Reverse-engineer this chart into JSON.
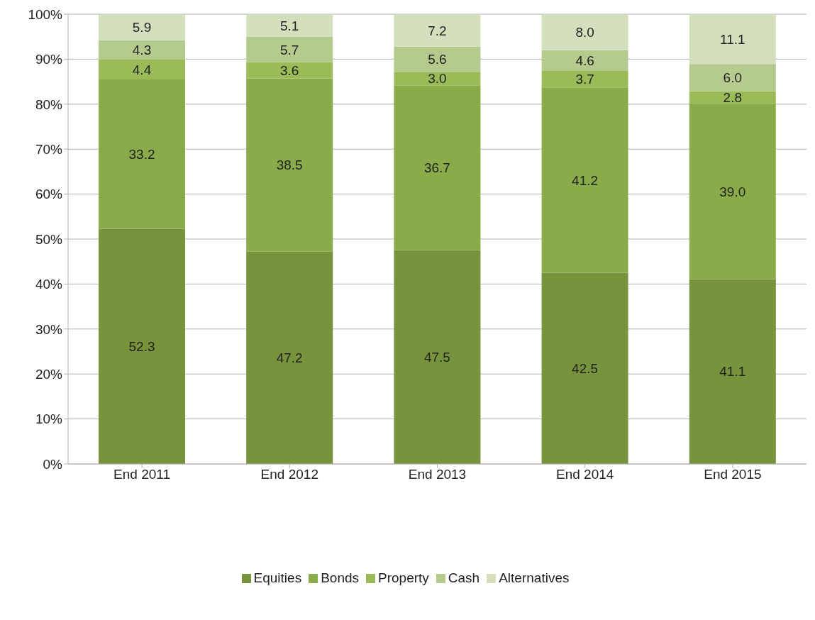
{
  "chart_data": {
    "type": "bar",
    "stacked": true,
    "categories": [
      "End 2011",
      "End 2012",
      "End 2013",
      "End 2014",
      "End 2015"
    ],
    "series": [
      {
        "name": "Equities",
        "color": "#77933c",
        "values": [
          52.3,
          47.2,
          47.5,
          42.5,
          41.1
        ],
        "value_labels": [
          "52.3",
          "47.2",
          "47.5",
          "42.5",
          "41.1"
        ]
      },
      {
        "name": "Bonds",
        "color": "#8aab4a",
        "values": [
          33.2,
          38.5,
          36.7,
          41.2,
          39.0
        ],
        "value_labels": [
          "33.2",
          "38.5",
          "36.7",
          "41.2",
          "39.0"
        ]
      },
      {
        "name": "Property",
        "color": "#9bbb59",
        "values": [
          4.4,
          3.6,
          3.0,
          3.7,
          2.8
        ],
        "value_labels": [
          "4.4",
          "3.6",
          "3.0",
          "3.7",
          "2.8"
        ]
      },
      {
        "name": "Cash",
        "color": "#b5cb8d",
        "values": [
          4.3,
          5.7,
          5.6,
          4.6,
          6.0
        ],
        "value_labels": [
          "4.3",
          "5.7",
          "5.6",
          "4.6",
          "6.0"
        ]
      },
      {
        "name": "Alternatives",
        "color": "#d4dfbd",
        "values": [
          5.9,
          5.1,
          7.2,
          8.0,
          11.1
        ],
        "value_labels": [
          "5.9",
          "5.1",
          "7.2",
          "8.0",
          "11.1"
        ]
      }
    ],
    "ylim": [
      0,
      100
    ],
    "yticks": [
      {
        "value": 0,
        "label": "0%"
      },
      {
        "value": 10,
        "label": "10%"
      },
      {
        "value": 20,
        "label": "20%"
      },
      {
        "value": 30,
        "label": "30%"
      },
      {
        "value": 40,
        "label": "40%"
      },
      {
        "value": 50,
        "label": "50%"
      },
      {
        "value": 60,
        "label": "60%"
      },
      {
        "value": 70,
        "label": "70%"
      },
      {
        "value": 80,
        "label": "80%"
      },
      {
        "value": 90,
        "label": "90%"
      },
      {
        "value": 100,
        "label": "100%"
      }
    ],
    "grid": "y",
    "legend": "bottom"
  }
}
